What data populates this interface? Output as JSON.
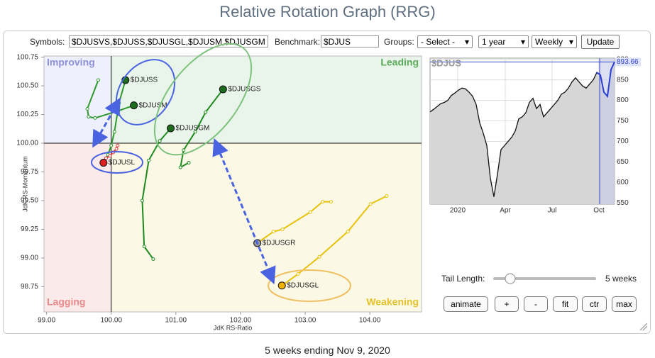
{
  "header": {
    "title": "Relative Rotation Graph (RRG)"
  },
  "controls": {
    "symbols_label": "Symbols:",
    "symbols": "$DJUSVS,$DJUSS,$DJUSGL,$DJUSM,$DJUSGM",
    "benchmark_label": "Benchmark:",
    "benchmark": "$DJUS",
    "groups_label": "Groups:",
    "groups": "- Select -",
    "period": "1 year",
    "frequency": "Weekly",
    "update": "Update",
    "tail_label": "Tail Length:",
    "tail_value": "5 weeks",
    "buttons": [
      "animate",
      "+",
      "-",
      "fit",
      "ctr",
      "max"
    ]
  },
  "chart_data": [
    {
      "type": "rrg",
      "x_label": "JdK RS-Ratio",
      "y_label": "JdK RS-Momentum",
      "quadrants": [
        "Improving",
        "Leading",
        "Lagging",
        "Weakening"
      ],
      "center": 100,
      "xlim": [
        98.96,
        104.8
      ],
      "ylim": [
        98.53,
        100.76
      ],
      "xticks": [
        {
          "value": 99,
          "label": "99.00"
        },
        {
          "value": 100,
          "label": "100.00"
        },
        {
          "value": 101,
          "label": "101.00"
        },
        {
          "value": 102,
          "label": "102.00"
        },
        {
          "value": 103,
          "label": "103.00"
        },
        {
          "value": 104,
          "label": "104.00"
        }
      ],
      "yticks": [
        {
          "value": 98.75,
          "label": "98.75"
        },
        {
          "value": 99,
          "label": "99.00"
        },
        {
          "value": 99.25,
          "label": "99.25"
        },
        {
          "value": 99.5,
          "label": "99.50"
        },
        {
          "value": 99.75,
          "label": "99.75"
        },
        {
          "value": 100,
          "label": "100.00"
        },
        {
          "value": 100.25,
          "label": "100.25"
        },
        {
          "value": 100.5,
          "label": "100.50"
        },
        {
          "value": 100.75,
          "label": "100.75"
        }
      ],
      "series": [
        {
          "name": "$DJUSS",
          "color": "#2e9a2e",
          "end_color": "#1d6b1d",
          "x": [
            99.9,
            99.95,
            100.0,
            100.05,
            100.12,
            100.22
          ],
          "y": [
            99.85,
            99.9,
            99.98,
            100.1,
            100.35,
            100.55
          ]
        },
        {
          "name": "$DJUSM",
          "color": "#2e9a2e",
          "end_color": "#1d6b1d",
          "x": [
            99.8,
            99.63,
            99.65,
            99.75,
            100.1,
            100.35
          ],
          "y": [
            100.55,
            100.3,
            100.23,
            100.22,
            100.28,
            100.33
          ]
        },
        {
          "name": "$DJUSGS",
          "color": "#1f8a1f",
          "end_color": "#1d6b1d",
          "x": [
            101.2,
            101.07,
            101.12,
            101.3,
            101.46,
            101.73
          ],
          "y": [
            99.83,
            99.79,
            99.94,
            100.1,
            100.27,
            100.47
          ]
        },
        {
          "name": "$DJUSGM",
          "color": "#1f8a1f",
          "end_color": "#1d6b1d",
          "x": [
            100.65,
            100.51,
            100.48,
            100.58,
            100.75,
            100.92
          ],
          "y": [
            98.99,
            99.1,
            99.5,
            99.85,
            100.02,
            100.13
          ]
        },
        {
          "name": "$DJUSL",
          "color": "#e03a3a",
          "end_color": "#e02020",
          "x": [
            100.1,
            100.08,
            100.03,
            99.98,
            99.92,
            99.88
          ],
          "y": [
            99.98,
            99.95,
            99.92,
            99.89,
            99.87,
            99.83
          ]
        },
        {
          "name": "$DJUSGR",
          "color": "#e8c20a",
          "end_color": "#9a9a9a",
          "x": [
            103.4,
            103.27,
            103.08,
            102.65,
            102.51,
            102.26
          ],
          "y": [
            99.49,
            99.49,
            99.4,
            99.25,
            99.23,
            99.13
          ]
        },
        {
          "name": "$DJUSGL",
          "color": "#e8c20a",
          "end_color": "#f0b000",
          "x": [
            104.26,
            104.01,
            103.66,
            103.22,
            102.89,
            102.64
          ],
          "y": [
            99.54,
            99.47,
            99.23,
            99.01,
            98.86,
            98.76
          ]
        }
      ]
    },
    {
      "type": "line",
      "title": "$DJUS",
      "color": "#111111",
      "marker_x": 47.8,
      "x": [
        0,
        1,
        2,
        3,
        4,
        5,
        6,
        7,
        8,
        9,
        10,
        11,
        12,
        13,
        14,
        15,
        16,
        17,
        18,
        19,
        20,
        21,
        22,
        23,
        24,
        25,
        26,
        27,
        28,
        29,
        30,
        31,
        32,
        33,
        34,
        35,
        36,
        37,
        38,
        39,
        40,
        41,
        42,
        43,
        44,
        45,
        46,
        47,
        48,
        49,
        50,
        51,
        52
      ],
      "values": [
        772,
        778,
        785,
        792,
        795,
        800,
        812,
        818,
        825,
        830,
        828,
        820,
        810,
        790,
        745,
        720,
        690,
        610,
        565,
        620,
        680,
        690,
        700,
        710,
        725,
        755,
        760,
        770,
        795,
        805,
        780,
        790,
        760,
        770,
        780,
        790,
        800,
        815,
        820,
        830,
        845,
        855,
        845,
        835,
        830,
        840,
        850,
        868,
        862,
        820,
        810,
        875,
        893.66
      ],
      "xlim": [
        0,
        52
      ],
      "ylim": [
        547,
        903
      ],
      "xticks": [
        {
          "value": 7.8,
          "label": "2020"
        },
        {
          "value": 21.2,
          "label": "Apr"
        },
        {
          "value": 34.4,
          "label": "Jul"
        },
        {
          "value": 47.6,
          "label": "Oct"
        }
      ],
      "yticks": [
        550,
        600,
        650,
        700,
        750,
        800,
        850,
        900
      ]
    }
  ],
  "footer": "5 weeks ending Nov 9, 2020"
}
